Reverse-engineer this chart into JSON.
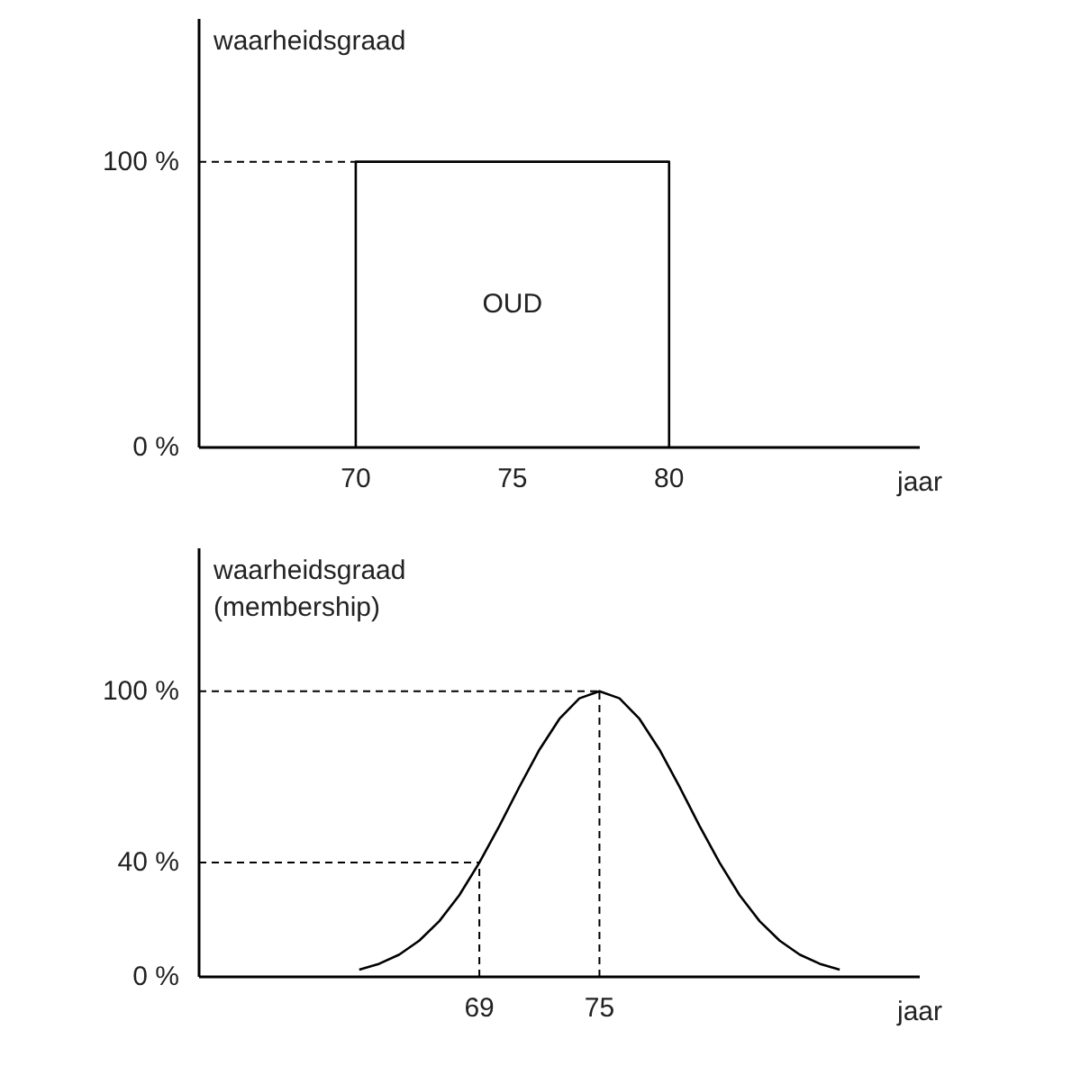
{
  "chart_data": [
    {
      "type": "line",
      "xlabel": "jaar",
      "ylabel": "waarheidsgraad",
      "x": [
        70,
        70,
        80,
        80
      ],
      "series": [
        {
          "color": "#000000",
          "values": [
            0,
            100,
            100,
            0
          ]
        }
      ],
      "xlim": [
        65,
        88
      ],
      "xticks": [
        70,
        75,
        80
      ],
      "ylim": [
        0,
        150
      ],
      "yticks": [
        {
          "value": 0,
          "label": "0 %"
        },
        {
          "value": 100,
          "label": "100 %"
        }
      ],
      "ref_lines": [
        {
          "axis": "y",
          "value": 100,
          "line_style": "dashed"
        }
      ],
      "annotations": [
        "OUD"
      ],
      "grid": false
    },
    {
      "type": "line",
      "xlabel": "jaar",
      "ylabel": "waarheidsgraad\n(membership)",
      "x": [
        63,
        64,
        65,
        66,
        67,
        68,
        69,
        70,
        71,
        72,
        73,
        74,
        75,
        76,
        77,
        78,
        79,
        80,
        81,
        82,
        83,
        84,
        85,
        86,
        87
      ],
      "series": [
        {
          "color": "#000000",
          "values": [
            2.5,
            4.6,
            7.8,
            12.7,
            19.5,
            28.6,
            40,
            52.8,
            66.5,
            79.5,
            90.3,
            97.5,
            100,
            97.5,
            90.3,
            79.5,
            66.5,
            52.8,
            40,
            28.6,
            19.5,
            12.7,
            7.8,
            4.6,
            2.5
          ]
        }
      ],
      "xlim": [
        55,
        91
      ],
      "xticks": [
        69,
        75
      ],
      "ylim": [
        0,
        150
      ],
      "yticks": [
        {
          "value": 0,
          "label": "0 %"
        },
        {
          "value": 40,
          "label": "40 %"
        },
        {
          "value": 100,
          "label": "100 %"
        }
      ],
      "ref_lines": [
        {
          "axis": "y",
          "value": 100,
          "line_style": "dashed"
        },
        {
          "axis": "y",
          "value": 40,
          "line_style": "dashed"
        },
        {
          "axis": "x",
          "value": 69,
          "line_style": "dashed"
        },
        {
          "axis": "x",
          "value": 75,
          "line_style": "dashed"
        }
      ],
      "grid": false
    }
  ]
}
